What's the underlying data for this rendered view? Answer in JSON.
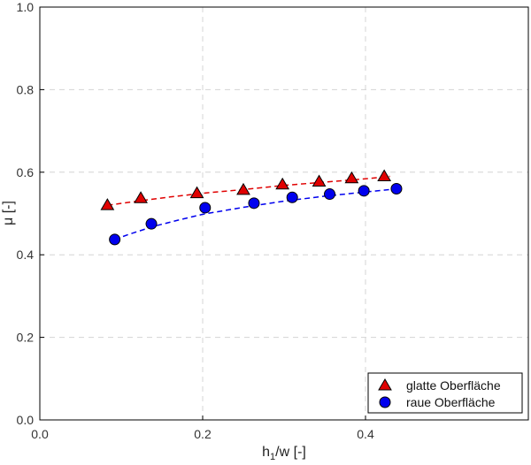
{
  "chart_data": {
    "type": "scatter",
    "xlabel": "h",
    "xlabel_sub": "1",
    "xlabel_suffix": "/w [-]",
    "ylabel": "μ [-]",
    "xlim": [
      0,
      0.6
    ],
    "ylim": [
      0,
      1
    ],
    "xticks": [
      0,
      0.2,
      0.4
    ],
    "xtick_labels": [
      "0.0",
      "0.2",
      "0.4"
    ],
    "yticks": [
      0,
      0.2,
      0.4,
      0.6,
      0.8,
      1.0
    ],
    "ytick_labels": [
      "0.0",
      "0.2",
      "0.4",
      "0.6",
      "0.8",
      "1.0"
    ],
    "grid": true,
    "legend_position": "bottom-right",
    "series": [
      {
        "name": "glatte Oberfläche",
        "marker": "triangle",
        "color": "#e00000",
        "points": [
          [
            0.083,
            0.52
          ],
          [
            0.124,
            0.537
          ],
          [
            0.193,
            0.549
          ],
          [
            0.25,
            0.557
          ],
          [
            0.298,
            0.57
          ],
          [
            0.343,
            0.577
          ],
          [
            0.383,
            0.585
          ],
          [
            0.423,
            0.59
          ]
        ],
        "fit": [
          [
            0.083,
            0.52
          ],
          [
            0.12,
            0.53
          ],
          [
            0.16,
            0.54
          ],
          [
            0.2,
            0.549
          ],
          [
            0.25,
            0.558
          ],
          [
            0.3,
            0.568
          ],
          [
            0.35,
            0.576
          ],
          [
            0.4,
            0.584
          ],
          [
            0.43,
            0.59
          ]
        ]
      },
      {
        "name": "raue Oberfläche",
        "marker": "circle",
        "color": "#0000ee",
        "points": [
          [
            0.092,
            0.437
          ],
          [
            0.137,
            0.475
          ],
          [
            0.203,
            0.514
          ],
          [
            0.263,
            0.525
          ],
          [
            0.31,
            0.539
          ],
          [
            0.356,
            0.547
          ],
          [
            0.398,
            0.555
          ],
          [
            0.438,
            0.56
          ]
        ],
        "fit": [
          [
            0.092,
            0.437
          ],
          [
            0.11,
            0.45
          ],
          [
            0.14,
            0.469
          ],
          [
            0.17,
            0.484
          ],
          [
            0.2,
            0.498
          ],
          [
            0.25,
            0.515
          ],
          [
            0.3,
            0.53
          ],
          [
            0.35,
            0.542
          ],
          [
            0.4,
            0.552
          ],
          [
            0.44,
            0.56
          ]
        ]
      }
    ]
  }
}
